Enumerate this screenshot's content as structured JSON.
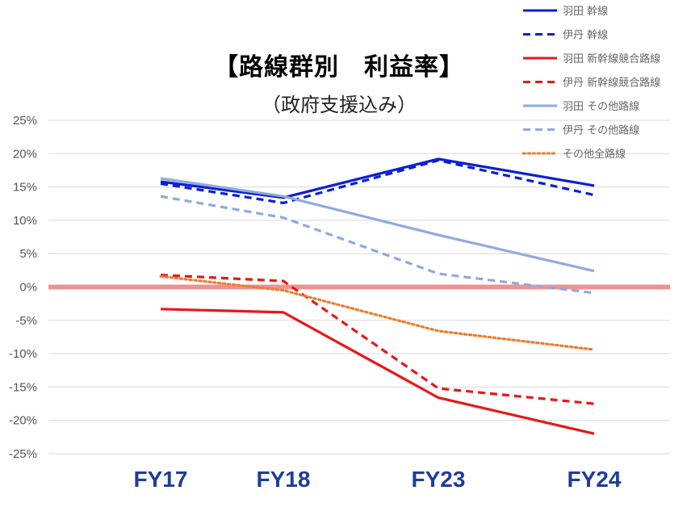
{
  "chart_data": {
    "type": "line",
    "title": "【路線群別　利益率】",
    "subtitle": "（政府支援込み）",
    "categories": [
      "FY17",
      "FY18",
      "FY23",
      "FY24"
    ],
    "ylim": [
      -25,
      25
    ],
    "y_ticks": [
      "25%",
      "20%",
      "15%",
      "10%",
      "5%",
      "0%",
      "-5%",
      "-10%",
      "-15%",
      "-20%",
      "-25%"
    ],
    "y_tick_values": [
      25,
      20,
      15,
      10,
      5,
      0,
      -5,
      -10,
      -15,
      -20,
      -25
    ],
    "grid": true,
    "legend_position": "top-right",
    "zero_line_color": "#f08080",
    "series": [
      {
        "name": "羽田 幹線",
        "values": [
          15.8,
          13.4,
          19.2,
          15.2
        ],
        "color": "#0a1fd6",
        "dash": "solid"
      },
      {
        "name": "伊丹 幹線",
        "values": [
          15.5,
          12.6,
          19.0,
          13.8
        ],
        "color": "#0a1fd6",
        "dash": "dashed"
      },
      {
        "name": "羽田 新幹線競合路線",
        "values": [
          -3.3,
          -3.8,
          -16.6,
          -22.0
        ],
        "color": "#e81818",
        "dash": "solid"
      },
      {
        "name": "伊丹 新幹線競合路線",
        "values": [
          1.8,
          0.9,
          -15.2,
          -17.5
        ],
        "color": "#e81818",
        "dash": "dashed"
      },
      {
        "name": "羽田 その他路線",
        "values": [
          16.3,
          13.6,
          7.8,
          2.4
        ],
        "color": "#8faadc",
        "dash": "solid"
      },
      {
        "name": "伊丹 その他路線",
        "values": [
          13.6,
          10.4,
          2.0,
          -0.9
        ],
        "color": "#8faadc",
        "dash": "dashed"
      },
      {
        "name": "その他全路線",
        "values": [
          1.6,
          -0.5,
          -6.6,
          -9.4
        ],
        "color": "#ed7d31",
        "dash": "dotted"
      }
    ]
  }
}
